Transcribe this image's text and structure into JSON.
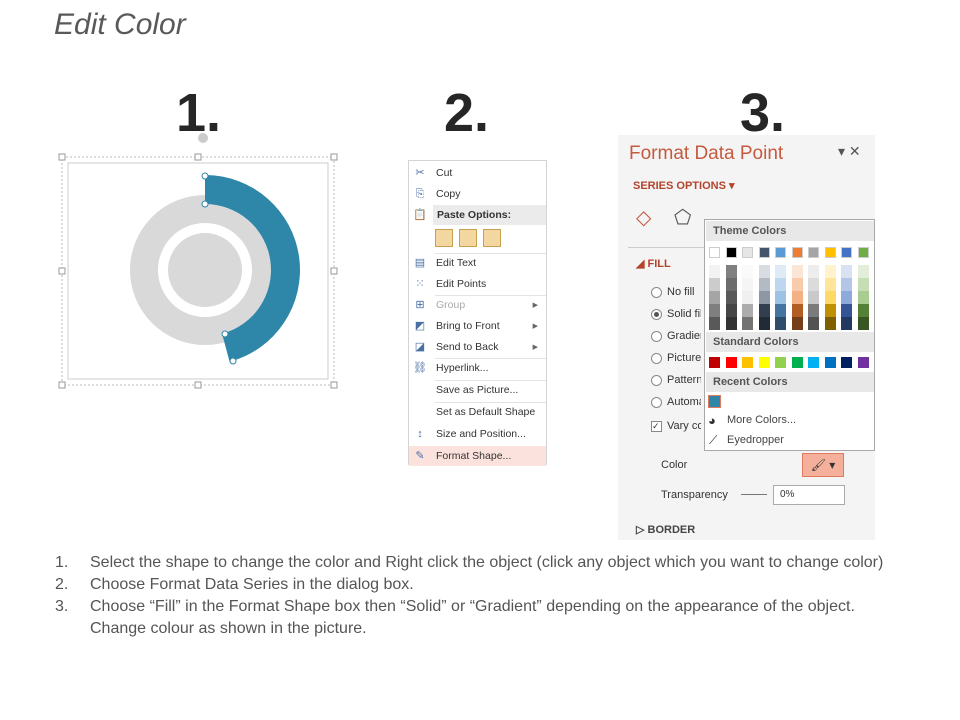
{
  "title": "Edit Color",
  "steps_numbers": [
    "1.",
    "2.",
    "3."
  ],
  "donut": {
    "highlight_color": "#2e86a8",
    "base_color": "#d9d9d9"
  },
  "context_menu": {
    "items": [
      {
        "label": "Cut",
        "icon": "scissors-icon"
      },
      {
        "label": "Copy",
        "icon": "copy-icon"
      },
      {
        "label": "Paste Options:",
        "icon": "paste-icon"
      },
      {
        "label": "Edit Text",
        "icon": "edit-text-icon"
      },
      {
        "label": "Edit Points",
        "icon": "edit-points-icon"
      },
      {
        "label": "Group",
        "icon": "group-icon",
        "disabled": true
      },
      {
        "label": "Bring to Front",
        "icon": "bring-front-icon"
      },
      {
        "label": "Send to Back",
        "icon": "send-back-icon"
      },
      {
        "label": "Hyperlink...",
        "icon": "hyperlink-icon"
      },
      {
        "label": "Save as Picture..."
      },
      {
        "label": "Set as Default Shape"
      },
      {
        "label": "Size and Position...",
        "icon": "size-position-icon"
      },
      {
        "label": "Format Shape...",
        "icon": "format-shape-icon"
      }
    ]
  },
  "panel": {
    "title": "Format Data Point",
    "series_options": "SERIES OPTIONS",
    "fill_header": "FILL",
    "fill_options": [
      "No fill",
      "Solid fill",
      "Gradient fill",
      "Picture or texture fill",
      "Pattern fill",
      "Automatic"
    ],
    "fill_selected": "Solid fill",
    "vary_colors": "Vary colors by point",
    "color_label": "Color",
    "transparency_label": "Transparency",
    "transparency_value": "0%",
    "border_header": "BORDER"
  },
  "picker": {
    "theme_header": "Theme Colors",
    "theme_colors": [
      "#ffffff",
      "#000000",
      "#e7e6e6",
      "#44546a",
      "#5b9bd5",
      "#ed7d31",
      "#a5a5a5",
      "#ffc000",
      "#4472c4",
      "#70ad47"
    ],
    "standard_header": "Standard Colors",
    "standard_colors": [
      "#c00000",
      "#ff0000",
      "#ffc000",
      "#ffff00",
      "#92d050",
      "#00b050",
      "#00b0f0",
      "#0070c0",
      "#002060",
      "#7030a0"
    ],
    "recent_header": "Recent Colors",
    "recent_colors": [
      "#2e86a8"
    ],
    "more_colors": "More Colors...",
    "eyedropper": "Eyedropper"
  },
  "instructions": [
    "Select the shape to change the color and Right click the object (click any object which you want to change color)",
    "Choose Format Data Series in the dialog box.",
    "Choose “Fill” in the Format Shape box then “Solid” or “Gradient” depending on the appearance of the object. Change colour as shown in the picture."
  ]
}
